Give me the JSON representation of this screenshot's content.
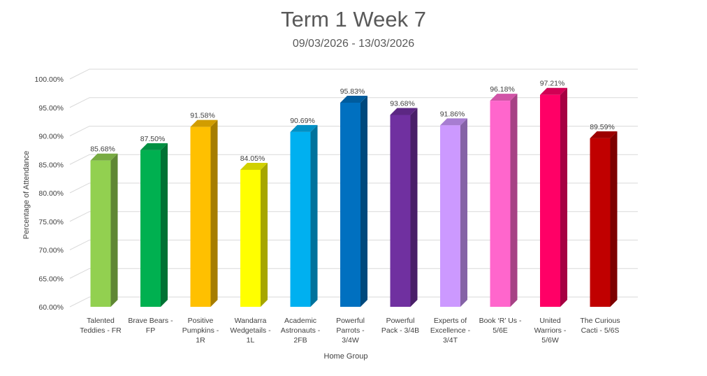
{
  "chart_data": {
    "type": "bar",
    "title": "Term 1 Week 7",
    "subtitle": "09/03/2026 - 13/03/2026",
    "xlabel": "Home Group",
    "ylabel": "Percentage of Attendance",
    "ylim": [
      60,
      100
    ],
    "yticks": [
      "60.00%",
      "65.00%",
      "70.00%",
      "75.00%",
      "80.00%",
      "85.00%",
      "90.00%",
      "95.00%",
      "100.00%"
    ],
    "grid": true,
    "legend": "none",
    "categories": [
      [
        "Talented",
        "Teddies - FR"
      ],
      [
        "Brave Bears -",
        "FP"
      ],
      [
        "Positive",
        "Pumpkins -",
        "1R"
      ],
      [
        "Wandarra",
        "Wedgetails -",
        "1L"
      ],
      [
        "Academic",
        "Astronauts -",
        "2FB"
      ],
      [
        "Powerful",
        "Parrots -",
        "3/4W"
      ],
      [
        "Powerful",
        "Pack - 3/4B"
      ],
      [
        "Experts of",
        "Excellence -",
        "3/4T"
      ],
      [
        "Book ‘R’ Us -",
        "5/6E"
      ],
      [
        "United",
        "Warriors -",
        "5/6W"
      ],
      [
        "The Curious",
        "Cacti - 5/6S"
      ]
    ],
    "values": [
      85.68,
      87.5,
      91.58,
      84.05,
      90.69,
      95.83,
      93.68,
      91.86,
      96.18,
      97.21,
      89.59
    ],
    "data_labels": [
      "85.68%",
      "87.50%",
      "91.58%",
      "84.05%",
      "90.69%",
      "95.83%",
      "93.68%",
      "91.86%",
      "96.18%",
      "97.21%",
      "89.59%"
    ],
    "colors": [
      "#92d050",
      "#00b050",
      "#ffc000",
      "#ffff00",
      "#00b0f0",
      "#0070c0",
      "#7030a0",
      "#cc99ff",
      "#ff66cc",
      "#ff0066",
      "#c00000"
    ]
  }
}
